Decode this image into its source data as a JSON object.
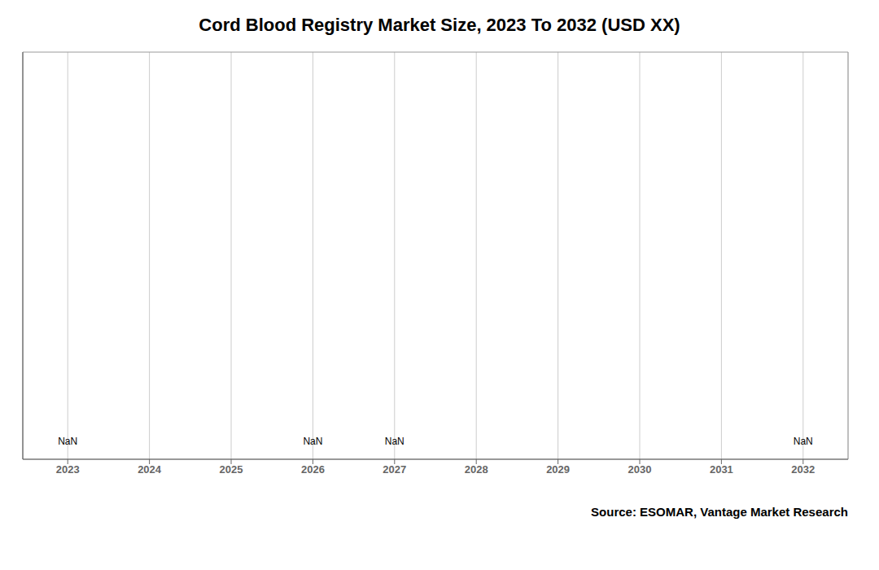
{
  "chart_data": {
    "type": "bar",
    "title": "Cord Blood Registry Market Size, 2023 To 2032 (USD XX)",
    "x": [
      2023,
      2024,
      2025,
      2026,
      2027,
      2028,
      2029,
      2030,
      2031,
      2032
    ],
    "values": [
      null,
      null,
      null,
      null,
      null,
      null,
      null,
      null,
      null,
      null
    ],
    "value_labels": [
      "NaN",
      null,
      null,
      "NaN",
      "NaN",
      null,
      null,
      null,
      null,
      "NaN"
    ],
    "data_labels": true,
    "xlim": [
      2022.45,
      2032.55
    ],
    "xticks": [
      2023,
      2024,
      2025,
      2026,
      2027,
      2028,
      2029,
      2030,
      2031,
      2032
    ],
    "ylim": [
      0,
      1
    ],
    "tick_labels": "x",
    "grid": "x",
    "annotations": [
      "Source: ESOMAR, Vantage Market Research"
    ]
  }
}
